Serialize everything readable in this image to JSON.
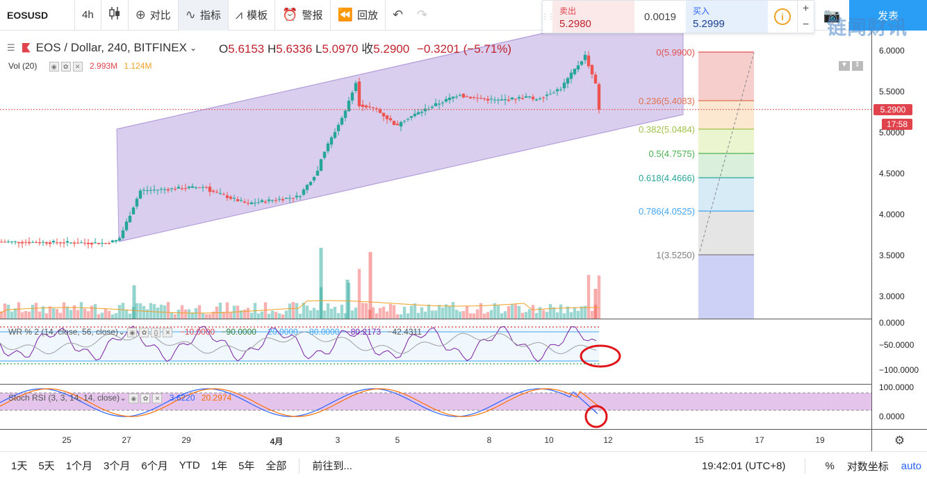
{
  "toolbar": {
    "symbol": "EOSUSD",
    "interval": "4h",
    "candle_icon": "candlestick-icon",
    "compare": "对比",
    "indicators": "指标",
    "templates": "模板",
    "alert": "警报",
    "replay": "回放",
    "undo_icon": "undo-icon",
    "redo_icon": "redo-icon",
    "publish": "发表",
    "camera_icon": "camera-icon"
  },
  "watermark": "链闻财讯",
  "trade": {
    "sell_label": "卖出",
    "sell_price": "5.2980",
    "spread": "0.0019",
    "buy_label": "买入",
    "buy_price": "5.2999",
    "info_icon": "i",
    "plus": "+",
    "minus": "−"
  },
  "legend": {
    "title": "EOS / Dollar, 240, BITFINEX",
    "open": "5.6153",
    "high": "5.6336",
    "low": "5.0970",
    "close": "5.2900",
    "change": "−0.3201 (−5.71%)",
    "volume": {
      "name": "Vol (20)",
      "v1": "2.993M",
      "v2": "1.124M"
    },
    "wr": {
      "name": "WR % 2 (14, close, 56, close)",
      "values": [
        "−10.0000",
        "−90.0000",
        "−20.0000",
        "−80.0000",
        "−80.2173",
        "−42.4311"
      ]
    },
    "stoch": {
      "name": "Stoch RSI (3, 3, 14, 14, close)",
      "k": "3.6220",
      "d": "20.2974"
    }
  },
  "price_axis": {
    "ticks": [
      "6.0000",
      "5.5000",
      "5.0000",
      "4.5000",
      "4.0000",
      "3.5000",
      "3.0000"
    ],
    "last_price": "5.2900",
    "countdown": "17:58",
    "wr_ticks": [
      "0.0000",
      "−50.0000",
      "−100.0000"
    ],
    "stoch_ticks": [
      "100.0000",
      "0.0000"
    ]
  },
  "fib": [
    {
      "label": "0(5.9900)",
      "color": "#e05050"
    },
    {
      "label": "0.236(5.4083)",
      "color": "#e07050"
    },
    {
      "label": "0.382(5.0484)",
      "color": "#9fc24a"
    },
    {
      "label": "0.5(4.7575)",
      "color": "#4caf50"
    },
    {
      "label": "0.618(4.4666)",
      "color": "#26a69a"
    },
    {
      "label": "0.786(4.0525)",
      "color": "#42a5f5"
    },
    {
      "label": "1(3.5250)",
      "color": "#7e7e7e"
    }
  ],
  "time_axis": [
    "25",
    "27",
    "29",
    "4月",
    "3",
    "5",
    "8",
    "10",
    "12",
    "15",
    "17",
    "19"
  ],
  "bottom": {
    "ranges": [
      "1天",
      "5天",
      "1个月",
      "3个月",
      "6个月",
      "YTD",
      "1年",
      "5年",
      "全部"
    ],
    "goto": "前往到...",
    "clock": "19:42:01 (UTC+8)",
    "percent": "%",
    "log": "对数坐标",
    "auto": "auto"
  },
  "colors": {
    "up": "#26a69a",
    "down": "#ef5350",
    "channel": "#b39ddb"
  }
}
